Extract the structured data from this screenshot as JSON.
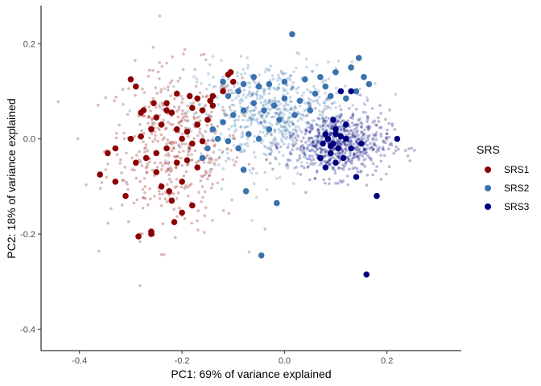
{
  "chart_data": {
    "type": "scatter",
    "title": "",
    "xlabel": "PC1: 69% of variance explained",
    "ylabel": "PC2: 18% of variance explained",
    "xlim": [
      -0.475,
      0.345
    ],
    "ylim": [
      -0.445,
      0.28
    ],
    "x_ticks": [
      -0.4,
      -0.2,
      0.0,
      0.2
    ],
    "x_tick_labels": [
      "-0.4",
      "-0.2",
      "0.0",
      "0.2"
    ],
    "y_ticks": [
      -0.4,
      -0.2,
      0.0,
      0.2
    ],
    "y_tick_labels": [
      "-0.4",
      "-0.2",
      "0.0",
      "0.2"
    ],
    "grid": false,
    "legend": {
      "title": "SRS",
      "position": "right"
    },
    "series": [
      {
        "name": "SRS1",
        "color": "#8B0000",
        "cloud": {
          "center": [
            -0.215,
            -0.02
          ],
          "spread": [
            0.065,
            0.085
          ],
          "count": 450
        },
        "highlight_points": [
          [
            -0.3,
            0.125
          ],
          [
            -0.29,
            0.11
          ],
          [
            -0.255,
            0.075
          ],
          [
            -0.28,
            0.055
          ],
          [
            -0.25,
            0.045
          ],
          [
            -0.23,
            0.06
          ],
          [
            -0.21,
            0.095
          ],
          [
            -0.185,
            0.09
          ],
          [
            -0.17,
            0.085
          ],
          [
            -0.145,
            0.08
          ],
          [
            -0.14,
            0.09
          ],
          [
            -0.11,
            0.135
          ],
          [
            -0.105,
            0.14
          ],
          [
            -0.1,
            0.12
          ],
          [
            -0.12,
            0.1
          ],
          [
            -0.14,
            0.07
          ],
          [
            -0.16,
            0.06
          ],
          [
            -0.18,
            0.065
          ],
          [
            -0.22,
            0.055
          ],
          [
            -0.24,
            0.03
          ],
          [
            -0.26,
            0.02
          ],
          [
            -0.28,
            0.005
          ],
          [
            -0.3,
            0.0
          ],
          [
            -0.21,
            0.02
          ],
          [
            -0.19,
            0.015
          ],
          [
            -0.17,
            0.03
          ],
          [
            -0.15,
            0.04
          ],
          [
            -0.2,
            0.0
          ],
          [
            -0.18,
            -0.01
          ],
          [
            -0.16,
            -0.005
          ],
          [
            -0.23,
            -0.02
          ],
          [
            -0.25,
            -0.03
          ],
          [
            -0.27,
            -0.04
          ],
          [
            -0.29,
            -0.05
          ],
          [
            -0.33,
            -0.02
          ],
          [
            -0.345,
            -0.03
          ],
          [
            -0.36,
            -0.075
          ],
          [
            -0.33,
            -0.09
          ],
          [
            -0.31,
            -0.12
          ],
          [
            -0.25,
            -0.07
          ],
          [
            -0.225,
            -0.11
          ],
          [
            -0.2,
            -0.09
          ],
          [
            -0.22,
            -0.13
          ],
          [
            -0.18,
            -0.14
          ],
          [
            -0.2,
            -0.155
          ],
          [
            -0.215,
            -0.175
          ],
          [
            -0.26,
            -0.2
          ],
          [
            -0.285,
            -0.205
          ],
          [
            -0.26,
            -0.195
          ],
          [
            -0.24,
            -0.1
          ],
          [
            -0.21,
            -0.05
          ],
          [
            -0.19,
            -0.045
          ],
          [
            -0.17,
            -0.06
          ],
          [
            -0.275,
            0.06
          ],
          [
            -0.23,
            0.075
          ]
        ]
      },
      {
        "name": "SRS2",
        "color": "#3A72AE",
        "cloud": {
          "center": [
            -0.02,
            0.05
          ],
          "spread": [
            0.075,
            0.055
          ],
          "count": 650
        },
        "highlight_points": [
          [
            0.015,
            0.22
          ],
          [
            -0.12,
            0.12
          ],
          [
            -0.08,
            0.115
          ],
          [
            -0.05,
            0.11
          ],
          [
            -0.03,
            0.115
          ],
          [
            0.0,
            0.12
          ],
          [
            0.04,
            0.125
          ],
          [
            0.07,
            0.13
          ],
          [
            0.1,
            0.14
          ],
          [
            0.13,
            0.15
          ],
          [
            0.145,
            0.17
          ],
          [
            0.155,
            0.13
          ],
          [
            0.165,
            0.115
          ],
          [
            0.14,
            0.1
          ],
          [
            0.12,
            0.085
          ],
          [
            0.09,
            0.09
          ],
          [
            0.06,
            0.095
          ],
          [
            0.03,
            0.08
          ],
          [
            0.0,
            0.085
          ],
          [
            -0.02,
            0.07
          ],
          [
            -0.04,
            0.06
          ],
          [
            -0.06,
            0.075
          ],
          [
            -0.08,
            0.06
          ],
          [
            -0.1,
            0.05
          ],
          [
            -0.12,
            0.035
          ],
          [
            -0.14,
            0.02
          ],
          [
            -0.13,
            0.0
          ],
          [
            -0.11,
            -0.005
          ],
          [
            -0.09,
            -0.02
          ],
          [
            -0.07,
            0.01
          ],
          [
            -0.05,
            0.0
          ],
          [
            -0.03,
            0.02
          ],
          [
            -0.01,
            0.04
          ],
          [
            0.02,
            0.05
          ],
          [
            0.05,
            0.06
          ],
          [
            -0.15,
            -0.02
          ],
          [
            -0.16,
            -0.04
          ],
          [
            -0.08,
            -0.065
          ],
          [
            -0.11,
            0.09
          ],
          [
            -0.075,
            -0.11
          ],
          [
            -0.015,
            -0.135
          ],
          [
            -0.045,
            -0.245
          ],
          [
            -0.09,
            0.1
          ],
          [
            -0.06,
            0.13
          ],
          [
            0.08,
            0.11
          ]
        ]
      },
      {
        "name": "SRS3",
        "color": "#00007F",
        "cloud": {
          "center": [
            0.105,
            -0.01
          ],
          "spread": [
            0.05,
            0.035
          ],
          "count": 620
        },
        "highlight_points": [
          [
            0.085,
            0.0
          ],
          [
            0.095,
            -0.01
          ],
          [
            0.1,
            0.01
          ],
          [
            0.105,
            -0.02
          ],
          [
            0.11,
            0.005
          ],
          [
            0.09,
            -0.03
          ],
          [
            0.115,
            -0.04
          ],
          [
            0.08,
            0.01
          ],
          [
            0.1,
            -0.05
          ],
          [
            0.12,
            0.0
          ],
          [
            0.09,
            -0.015
          ],
          [
            0.1,
            0.02
          ],
          [
            0.075,
            -0.01
          ],
          [
            0.13,
            -0.02
          ],
          [
            0.07,
            -0.04
          ],
          [
            0.14,
            -0.08
          ],
          [
            0.18,
            -0.12
          ],
          [
            0.22,
            0.0
          ],
          [
            0.16,
            -0.285
          ],
          [
            0.13,
            0.1
          ],
          [
            0.11,
            0.1
          ],
          [
            0.08,
            -0.06
          ],
          [
            0.12,
            0.03
          ],
          [
            0.095,
            0.04
          ],
          [
            0.15,
            -0.01
          ]
        ]
      }
    ]
  }
}
